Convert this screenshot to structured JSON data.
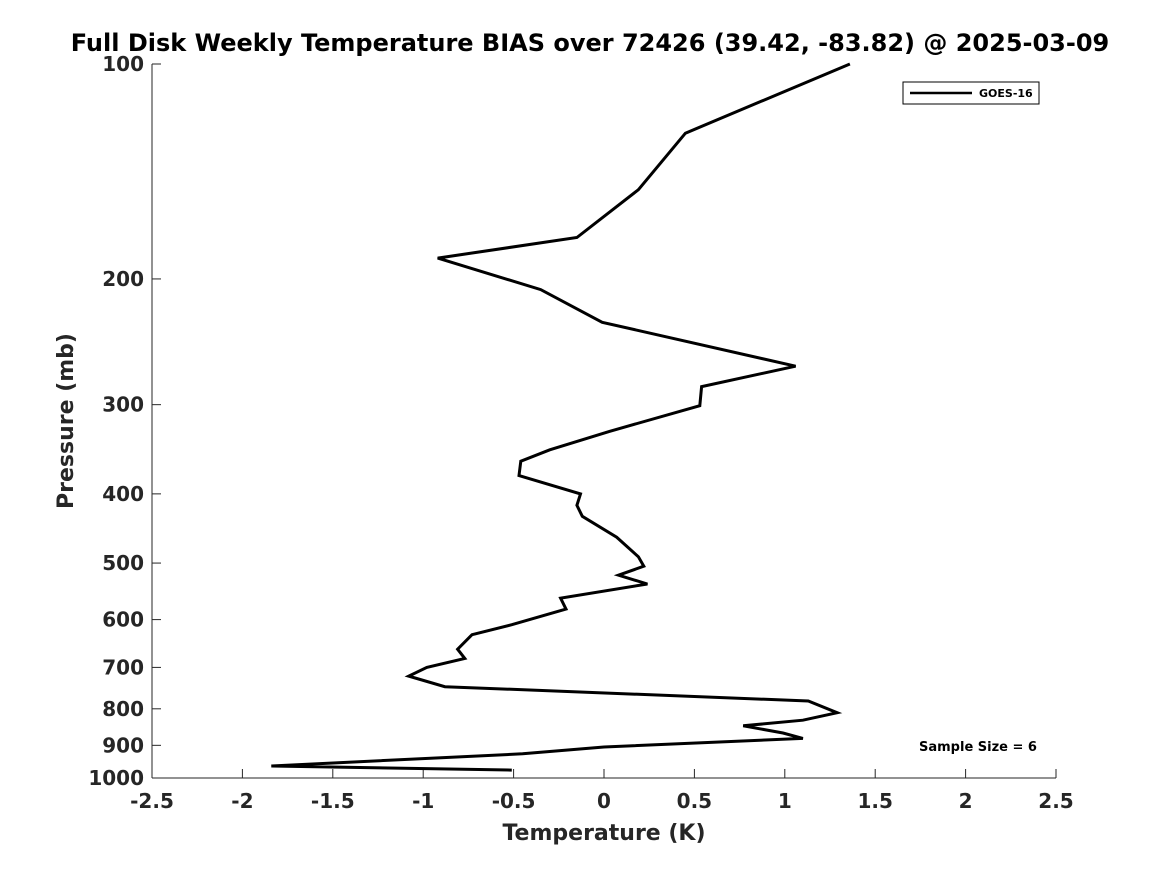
{
  "chart_data": {
    "type": "line",
    "title": "Full Disk Weekly Temperature BIAS over 72426 (39.42, -83.82) @ 2025-03-09",
    "xlabel": "Temperature (K)",
    "ylabel": "Pressure (mb)",
    "xlim": [
      -2.5,
      2.5
    ],
    "ylim": [
      100,
      1000
    ],
    "y_scale": "log",
    "y_reversed": true,
    "x_ticks": [
      "-2.5",
      "-2",
      "-1.5",
      "-1",
      "-0.5",
      "0",
      "0.5",
      "1",
      "1.5",
      "2",
      "2.5"
    ],
    "y_ticks": [
      "100",
      "200",
      "300",
      "400",
      "500",
      "600",
      "700",
      "800",
      "900",
      "1000"
    ],
    "grid": false,
    "legend_position": "top-right",
    "annotation": "Sample Size = 6",
    "series": [
      {
        "name": "GOES-16",
        "color": "#000000",
        "points": [
          [
            1.36,
            100
          ],
          [
            0.45,
            125
          ],
          [
            0.19,
            150
          ],
          [
            -0.15,
            175
          ],
          [
            -0.92,
            187
          ],
          [
            -0.35,
            207
          ],
          [
            -0.01,
            230
          ],
          [
            1.06,
            265
          ],
          [
            0.54,
            283
          ],
          [
            0.53,
            301
          ],
          [
            0.03,
            327
          ],
          [
            -0.3,
            347
          ],
          [
            -0.46,
            360
          ],
          [
            -0.47,
            377
          ],
          [
            -0.13,
            400
          ],
          [
            -0.15,
            415
          ],
          [
            -0.12,
            430
          ],
          [
            0.07,
            460
          ],
          [
            0.19,
            490
          ],
          [
            0.22,
            505
          ],
          [
            0.08,
            520
          ],
          [
            0.24,
            535
          ],
          [
            -0.24,
            560
          ],
          [
            -0.21,
            580
          ],
          [
            -0.51,
            610
          ],
          [
            -0.73,
            630
          ],
          [
            -0.81,
            660
          ],
          [
            -0.77,
            680
          ],
          [
            -0.98,
            700
          ],
          [
            -1.08,
            720
          ],
          [
            -0.88,
            745
          ],
          [
            1.13,
            780
          ],
          [
            1.29,
            810
          ],
          [
            1.1,
            830
          ],
          [
            0.77,
            845
          ],
          [
            0.99,
            865
          ],
          [
            1.1,
            880
          ],
          [
            0.0,
            905
          ],
          [
            -0.45,
            925
          ],
          [
            -1.84,
            962
          ],
          [
            -0.51,
            975
          ]
        ]
      }
    ]
  }
}
